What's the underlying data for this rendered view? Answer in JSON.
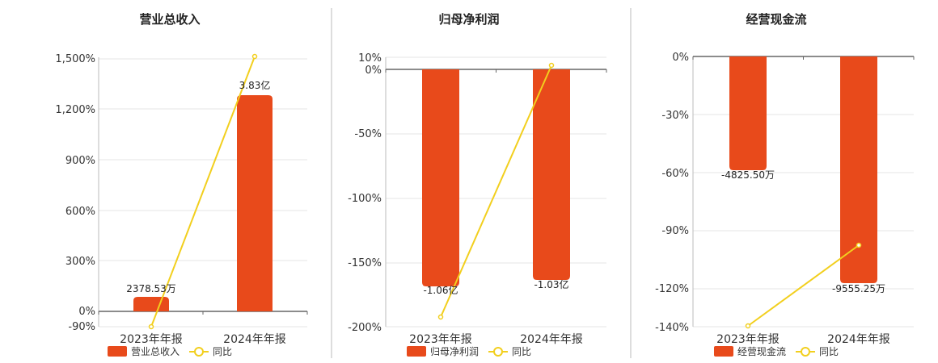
{
  "colors": {
    "bar": "#E84A1B",
    "line": "#F2CF1E",
    "grid": "#e6e6e6",
    "axis": "#666666",
    "divider": "#bbbbbb"
  },
  "chart_data": [
    {
      "type": "bar",
      "title": "营业总收入",
      "categories": [
        "2023年年报",
        "2024年年报"
      ],
      "series": [
        {
          "name": "营业总收入",
          "type": "bar",
          "values": [
            0.2378,
            3.83
          ],
          "labels": [
            "2378.53万",
            "3.83亿"
          ]
        },
        {
          "name": "同比",
          "type": "line",
          "values": [
            -90,
            1500
          ]
        }
      ],
      "yaxis": {
        "ticks": [
          "1,500%",
          "1,200%",
          "900%",
          "600%",
          "300%",
          "0%",
          "-90%"
        ]
      },
      "legend": "bottom-left"
    },
    {
      "type": "bar",
      "title": "归母净利润",
      "categories": [
        "2023年年报",
        "2024年年报"
      ],
      "series": [
        {
          "name": "归母净利润",
          "type": "bar",
          "values": [
            -1.06,
            -1.03
          ],
          "labels": [
            "-1.06亿",
            "-1.03亿"
          ]
        },
        {
          "name": "同比",
          "type": "line",
          "values": [
            -193,
            3
          ]
        }
      ],
      "yaxis": {
        "ticks": [
          "10%",
          "0%",
          "-50%",
          "-100%",
          "-150%",
          "-200%"
        ]
      },
      "legend": "bottom-left"
    },
    {
      "type": "bar",
      "title": "经营现金流",
      "categories": [
        "2023年年报",
        "2024年年报"
      ],
      "series": [
        {
          "name": "经营现金流",
          "type": "bar",
          "values": [
            -4825.5,
            -9555.25
          ],
          "labels": [
            "-4825.50万",
            "-9555.25万"
          ]
        },
        {
          "name": "同比",
          "type": "line",
          "values": [
            -140,
            -98
          ]
        }
      ],
      "yaxis": {
        "ticks": [
          "0%",
          "-30%",
          "-60%",
          "-90%",
          "-120%",
          "-140%"
        ]
      },
      "legend": "bottom-left"
    }
  ]
}
